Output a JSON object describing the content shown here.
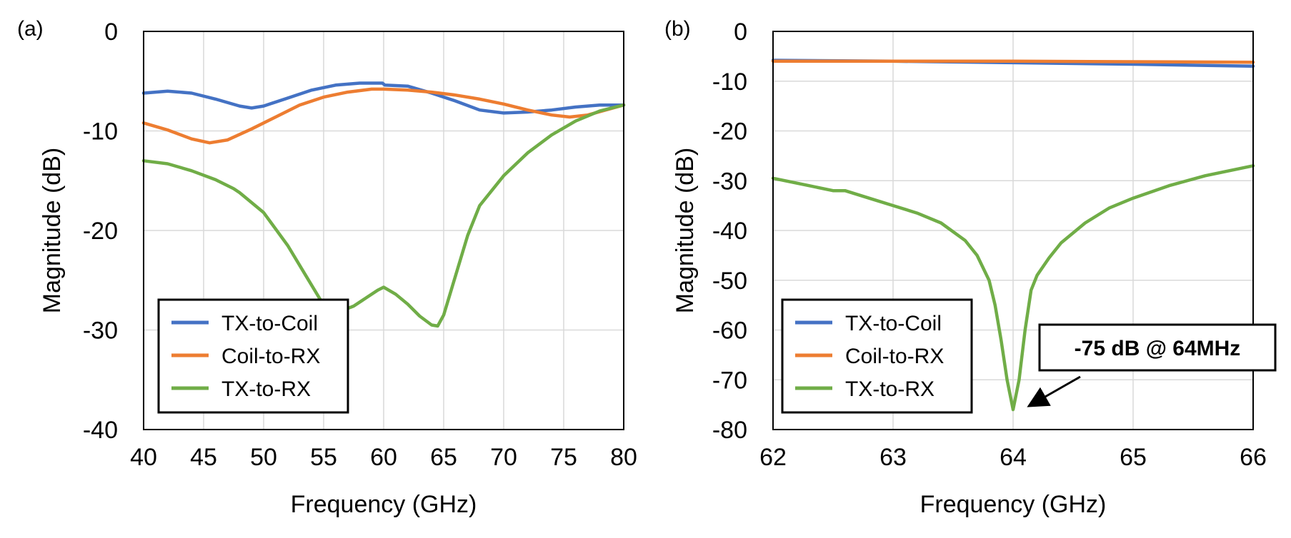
{
  "chart_data": [
    {
      "type": "line",
      "panel_label": "(a)",
      "xlabel": "Frequency (GHz)",
      "ylabel": "Magnitude (dB)",
      "xlim": [
        40,
        80
      ],
      "ylim": [
        -40,
        0
      ],
      "xticks": [
        40,
        45,
        50,
        55,
        60,
        65,
        70,
        75,
        80
      ],
      "yticks": [
        0,
        -10,
        -20,
        -30,
        -40
      ],
      "grid": true,
      "legend_position": "bottom-left",
      "series": [
        {
          "name": "TX-to-Coil",
          "color": "#4472C4",
          "x": [
            40,
            42,
            44,
            46,
            48,
            49,
            50,
            52,
            54,
            56,
            58,
            59.9,
            60.1,
            62,
            64,
            66,
            68,
            70,
            72,
            74,
            76,
            78,
            80
          ],
          "y": [
            -6.2,
            -6.0,
            -6.2,
            -6.8,
            -7.5,
            -7.7,
            -7.5,
            -6.7,
            -5.9,
            -5.4,
            -5.2,
            -5.2,
            -5.4,
            -5.5,
            -6.2,
            -7.0,
            -7.9,
            -8.2,
            -8.1,
            -7.9,
            -7.6,
            -7.4,
            -7.4
          ]
        },
        {
          "name": "Coil-to-RX",
          "color": "#ED7D31",
          "x": [
            40,
            42,
            44,
            45.5,
            47,
            49,
            51,
            53,
            55,
            57,
            59,
            60,
            62,
            64,
            66,
            68,
            70,
            72,
            74,
            75.5,
            77,
            78.5,
            80
          ],
          "y": [
            -9.2,
            -9.9,
            -10.8,
            -11.2,
            -10.9,
            -9.8,
            -8.6,
            -7.4,
            -6.6,
            -6.1,
            -5.8,
            -5.8,
            -5.9,
            -6.1,
            -6.4,
            -6.8,
            -7.3,
            -7.9,
            -8.4,
            -8.6,
            -8.4,
            -7.9,
            -7.4
          ]
        },
        {
          "name": "TX-to-RX",
          "color": "#70AD47",
          "x": [
            40,
            42,
            44,
            46,
            47.5,
            48,
            50,
            52,
            53.5,
            55,
            56,
            57.5,
            58.5,
            59.5,
            60,
            61,
            62,
            63,
            64,
            64.5,
            65,
            66,
            67,
            68,
            70,
            72,
            74,
            76,
            78,
            80
          ],
          "y": [
            -13.0,
            -13.3,
            -14.0,
            -14.9,
            -15.8,
            -16.2,
            -18.2,
            -21.5,
            -24.5,
            -27.5,
            -28.3,
            -27.6,
            -26.8,
            -26.0,
            -25.7,
            -26.4,
            -27.4,
            -28.6,
            -29.5,
            -29.6,
            -28.5,
            -24.5,
            -20.5,
            -17.5,
            -14.5,
            -12.2,
            -10.4,
            -9.0,
            -8.0,
            -7.4
          ]
        }
      ]
    },
    {
      "type": "line",
      "panel_label": "(b)",
      "xlabel": "Frequency (GHz)",
      "ylabel": "Magnitude (dB)",
      "xlim": [
        62,
        66
      ],
      "ylim": [
        -80,
        0
      ],
      "xticks": [
        62,
        63,
        64,
        65,
        66
      ],
      "yticks": [
        0,
        -10,
        -20,
        -30,
        -40,
        -50,
        -60,
        -70,
        -80
      ],
      "grid": true,
      "legend_position": "bottom-left",
      "annotation": {
        "text": "-75 dB @ 64MHz",
        "x": 64,
        "y": -75
      },
      "series": [
        {
          "name": "TX-to-Coil",
          "color": "#4472C4",
          "x": [
            62,
            63,
            64,
            65,
            66
          ],
          "y": [
            -5.8,
            -6.0,
            -6.3,
            -6.6,
            -7.0
          ]
        },
        {
          "name": "Coil-to-RX",
          "color": "#ED7D31",
          "x": [
            62,
            63,
            64,
            65,
            66
          ],
          "y": [
            -6.0,
            -6.0,
            -6.0,
            -6.1,
            -6.2
          ]
        },
        {
          "name": "TX-to-RX",
          "color": "#70AD47",
          "x": [
            62,
            62.3,
            62.5,
            62.6,
            62.8,
            63,
            63.2,
            63.4,
            63.6,
            63.7,
            63.8,
            63.85,
            63.9,
            63.95,
            64,
            64.05,
            64.1,
            64.15,
            64.2,
            64.3,
            64.4,
            64.6,
            64.8,
            65,
            65.3,
            65.6,
            66
          ],
          "y": [
            -29.5,
            -31.0,
            -32.0,
            -32.0,
            -33.5,
            -35.0,
            -36.5,
            -38.5,
            -42.0,
            -45.0,
            -50.0,
            -55.0,
            -62.0,
            -70.0,
            -76.0,
            -70.0,
            -60.0,
            -52.0,
            -49.0,
            -45.5,
            -42.5,
            -38.5,
            -35.5,
            -33.5,
            -31.0,
            -29.0,
            -27.0
          ]
        }
      ]
    }
  ]
}
